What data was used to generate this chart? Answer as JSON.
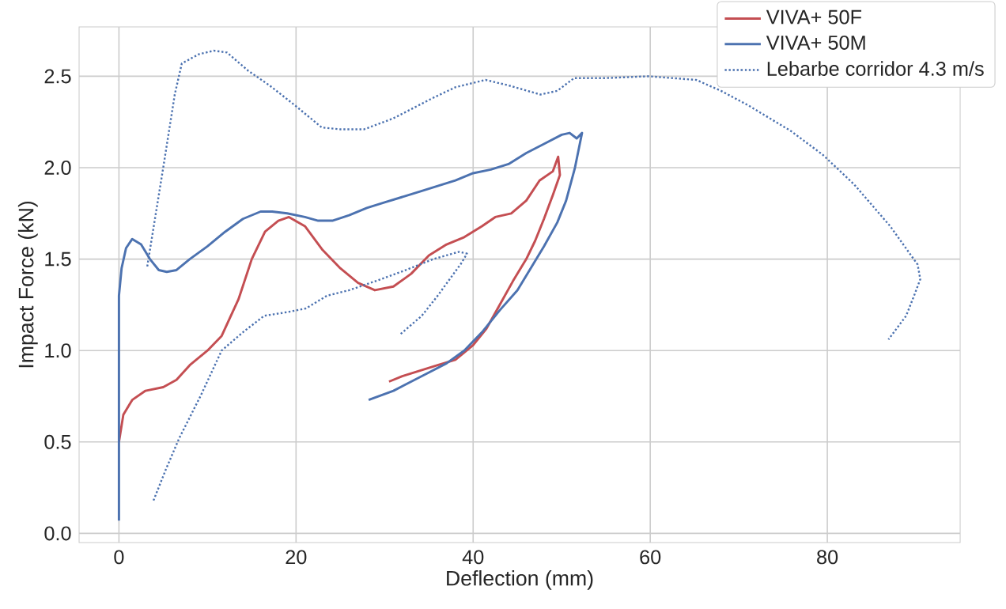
{
  "chart_data": {
    "type": "line",
    "xlabel": "Deflection (mm)",
    "ylabel": "Impact Force (kN)",
    "xlim": [
      -4.5,
      95
    ],
    "ylim": [
      -0.05,
      2.77
    ],
    "xticks": [
      0,
      20,
      40,
      60,
      80
    ],
    "yticks": [
      {
        "value": 0,
        "label": "0.0"
      },
      {
        "value": 0.5,
        "label": "0.5"
      },
      {
        "value": 1,
        "label": "1.0"
      },
      {
        "value": 1.5,
        "label": "1.5"
      },
      {
        "value": 2,
        "label": "2.0"
      },
      {
        "value": 2.5,
        "label": "2.5"
      }
    ],
    "grid": true,
    "legend": "top right",
    "series": [
      {
        "name": "VIVA+ 50F",
        "color": "#c44e52",
        "line_style": "solid",
        "x": [
          0,
          0.5,
          1.5,
          3,
          5,
          6.5,
          8,
          10,
          11.6,
          13.5,
          15,
          16.5,
          18,
          19.2,
          21,
          23,
          25,
          27,
          28.9,
          31,
          33,
          35,
          37,
          39,
          41,
          42.5,
          44.3,
          46,
          47.5,
          49,
          49.6,
          49.8,
          49,
          48,
          47,
          46,
          44.5,
          43,
          41.5,
          40,
          38,
          36,
          34,
          32,
          30.5
        ],
        "values": [
          0.5,
          0.65,
          0.73,
          0.78,
          0.8,
          0.84,
          0.92,
          1.0,
          1.08,
          1.28,
          1.5,
          1.65,
          1.71,
          1.73,
          1.68,
          1.55,
          1.45,
          1.37,
          1.33,
          1.35,
          1.42,
          1.52,
          1.58,
          1.62,
          1.68,
          1.73,
          1.75,
          1.82,
          1.93,
          1.98,
          2.06,
          1.96,
          1.85,
          1.72,
          1.6,
          1.5,
          1.38,
          1.25,
          1.12,
          1.03,
          0.95,
          0.92,
          0.89,
          0.86,
          0.83
        ]
      },
      {
        "name": "VIVA+ 50M",
        "color": "#4c72b0",
        "line_style": "solid",
        "x": [
          0,
          0,
          0.3,
          0.8,
          1.5,
          2.5,
          3.5,
          4.5,
          5.4,
          6.5,
          8,
          10,
          12,
          14,
          16,
          17.3,
          19,
          21,
          22.5,
          24.1,
          26,
          28,
          30,
          32,
          34,
          36,
          38,
          40,
          42,
          44,
          46,
          48,
          50,
          50.9,
          51.7,
          52.3,
          51.5,
          50.5,
          49.5,
          48,
          46.5,
          45,
          43,
          41,
          39,
          37,
          35,
          33,
          31,
          28.2
        ],
        "values": [
          0.07,
          1.3,
          1.45,
          1.56,
          1.61,
          1.58,
          1.5,
          1.44,
          1.43,
          1.44,
          1.5,
          1.57,
          1.65,
          1.72,
          1.76,
          1.76,
          1.75,
          1.73,
          1.71,
          1.71,
          1.74,
          1.78,
          1.81,
          1.84,
          1.87,
          1.9,
          1.93,
          1.97,
          1.99,
          2.02,
          2.08,
          2.13,
          2.18,
          2.19,
          2.16,
          2.19,
          2.0,
          1.82,
          1.7,
          1.57,
          1.45,
          1.33,
          1.22,
          1.1,
          1.0,
          0.93,
          0.88,
          0.83,
          0.78,
          0.73
        ]
      },
      {
        "name": "Lebarbe corridor 4.3 m/s",
        "color": "#4c72b0",
        "line_style": "dotted",
        "x": [
          3.2,
          5,
          6.3,
          7.1,
          9,
          10.7,
          12.2,
          14.6,
          17,
          19.9,
          22.9,
          25,
          27.7,
          31,
          35.4,
          38,
          41.4,
          44,
          47.6,
          49.5,
          51.4,
          55,
          59.8,
          65.2,
          68,
          71.1,
          75.9,
          79.5,
          83,
          87.1,
          90.2,
          90.5,
          89.8,
          88.9,
          86.9,
          null,
          3.9,
          5.3,
          6.8,
          9.2,
          11.6,
          14,
          16.4,
          19,
          21.1,
          23.5,
          26,
          29,
          32.4,
          35.5,
          38.4,
          39.3,
          38.7,
          37.8,
          36,
          34.2,
          31.8
        ],
        "values": [
          1.46,
          2.0,
          2.4,
          2.57,
          2.62,
          2.64,
          2.63,
          2.53,
          2.45,
          2.34,
          2.22,
          2.21,
          2.21,
          2.27,
          2.38,
          2.44,
          2.48,
          2.45,
          2.4,
          2.42,
          2.49,
          2.49,
          2.5,
          2.48,
          2.42,
          2.34,
          2.2,
          2.07,
          1.91,
          1.68,
          1.47,
          1.39,
          1.3,
          1.19,
          1.06,
          null,
          0.18,
          0.35,
          0.52,
          0.75,
          1.0,
          1.1,
          1.19,
          1.21,
          1.23,
          1.3,
          1.33,
          1.38,
          1.44,
          1.5,
          1.54,
          1.53,
          1.48,
          1.42,
          1.3,
          1.19,
          1.09
        ]
      }
    ]
  }
}
